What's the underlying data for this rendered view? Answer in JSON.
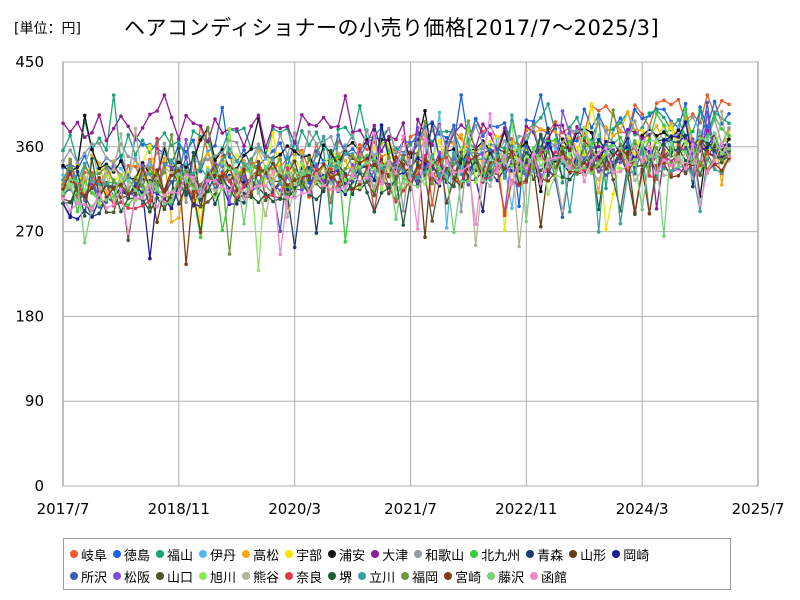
{
  "unit_label": "[単位：円]",
  "title": "ヘアコンディショナーの小売り価格[2017/7〜2025/3]",
  "chart_data": {
    "type": "line",
    "title": "ヘアコンディショナーの小売り価格[2017/7〜2025/3]",
    "unit": "円",
    "x_range": [
      "2017/7",
      "2025/7"
    ],
    "x_ticks": [
      "2017/7",
      "2018/11",
      "2020/3",
      "2021/7",
      "2022/11",
      "2024/3",
      "2025/7"
    ],
    "ylim": [
      0,
      450
    ],
    "y_ticks": [
      0,
      90,
      180,
      270,
      360,
      450
    ],
    "grid": true,
    "legend_position": "bottom",
    "series": [
      {
        "name": "岐阜",
        "color": "#f05a28",
        "start": 318,
        "end": 405
      },
      {
        "name": "徳島",
        "color": "#1c63e6",
        "start": 338,
        "end": 395
      },
      {
        "name": "福山",
        "color": "#17a37a",
        "start": 356,
        "end": 385
      },
      {
        "name": "伊丹",
        "color": "#55b9ec",
        "start": 330,
        "end": 370
      },
      {
        "name": "高松",
        "color": "#f2aa10",
        "start": 325,
        "end": 378
      },
      {
        "name": "宇部",
        "color": "#f0e800",
        "start": 322,
        "end": 372
      },
      {
        "name": "浦安",
        "color": "#111111",
        "start": 340,
        "end": 368
      },
      {
        "name": "大津",
        "color": "#8e1b98",
        "start": 385,
        "end": 360
      },
      {
        "name": "和歌山",
        "color": "#939aa3",
        "start": 345,
        "end": 380
      },
      {
        "name": "北九州",
        "color": "#3ac93a",
        "start": 305,
        "end": 372
      },
      {
        "name": "青森",
        "color": "#1f3a70",
        "start": 300,
        "end": 362
      },
      {
        "name": "山形",
        "color": "#6b3a12",
        "start": 315,
        "end": 355
      },
      {
        "name": "岡崎",
        "color": "#1a1a9a",
        "start": 300,
        "end": 360
      },
      {
        "name": "所沢",
        "color": "#3a5fae",
        "start": 310,
        "end": 355
      },
      {
        "name": "松阪",
        "color": "#7a4fe0",
        "start": 320,
        "end": 352
      },
      {
        "name": "山口",
        "color": "#555533",
        "start": 305,
        "end": 350
      },
      {
        "name": "旭川",
        "color": "#8ee65a",
        "start": 312,
        "end": 352
      },
      {
        "name": "熊谷",
        "color": "#b4b49a",
        "start": 318,
        "end": 345
      },
      {
        "name": "奈良",
        "color": "#e03a4a",
        "start": 308,
        "end": 348
      },
      {
        "name": "堺",
        "color": "#1e5a3a",
        "start": 300,
        "end": 356
      },
      {
        "name": "立川",
        "color": "#3aa0a0",
        "start": 325,
        "end": 350
      },
      {
        "name": "福岡",
        "color": "#6a9a3a",
        "start": 320,
        "end": 352
      },
      {
        "name": "宮崎",
        "color": "#8a3a10",
        "start": 315,
        "end": 348
      },
      {
        "name": "藤沢",
        "color": "#76d07a",
        "start": 310,
        "end": 358
      },
      {
        "name": "函館",
        "color": "#f08ad0",
        "start": 305,
        "end": 350
      }
    ]
  }
}
